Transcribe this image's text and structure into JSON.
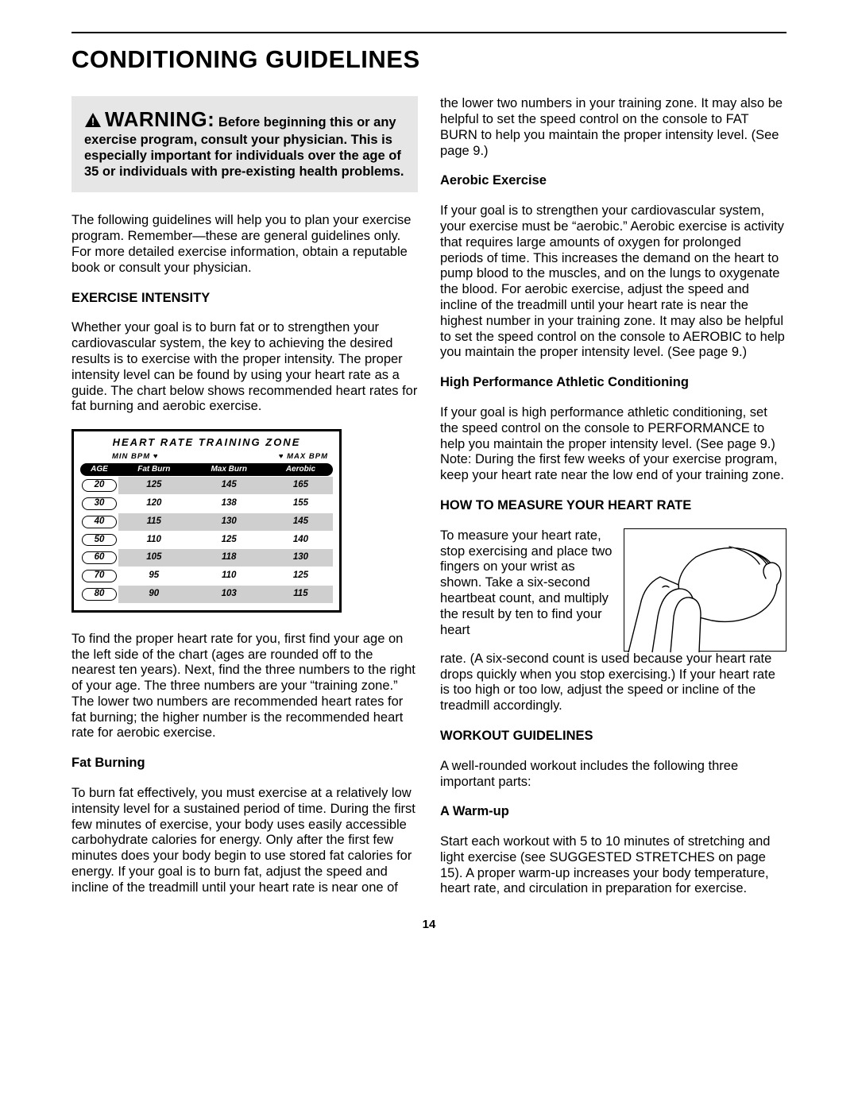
{
  "page_title": "CONDITIONING GUIDELINES",
  "page_number": "14",
  "warning": {
    "lead": "WARNING:",
    "tail": "Before beginning this or any exercise program, consult your physician. This is especially important for individuals over the age of 35 or individuals with pre-existing health problems."
  },
  "intro": "The following guidelines will help you to plan your exercise program. Remember—these are general guidelines only. For more detailed exercise information, obtain a reputable book or consult your physician.",
  "exercise_intensity": {
    "heading": "EXERCISE INTENSITY",
    "p1": "Whether your goal is to burn fat or to strengthen your cardiovascular system, the key to achieving the desired results is to exercise with the proper intensity. The proper intensity level can be found by using your heart rate as a guide. The chart below shows recommended heart rates for fat burning and aerobic exercise.",
    "p2": "To find the proper heart rate for you, first find your age on the left side of the chart (ages are rounded off to the nearest ten years). Next, find the three numbers to the right of your age. The three numbers are your “training zone.” The lower two numbers are recommended heart rates for fat burning; the higher number is the recommended heart rate for aerobic exercise."
  },
  "chart": {
    "title": "HEART RATE TRAINING ZONE",
    "min_label": "MIN BPM",
    "max_label": "MAX BPM",
    "heart": "♥",
    "columns": [
      "AGE",
      "Fat Burn",
      "Max Burn",
      "Aerobic"
    ],
    "rows": [
      {
        "age": "20",
        "fat": "125",
        "max": "145",
        "aer": "165"
      },
      {
        "age": "30",
        "fat": "120",
        "max": "138",
        "aer": "155"
      },
      {
        "age": "40",
        "fat": "115",
        "max": "130",
        "aer": "145"
      },
      {
        "age": "50",
        "fat": "110",
        "max": "125",
        "aer": "140"
      },
      {
        "age": "60",
        "fat": "105",
        "max": "118",
        "aer": "130"
      },
      {
        "age": "70",
        "fat": "95",
        "max": "110",
        "aer": "125"
      },
      {
        "age": "80",
        "fat": "90",
        "max": "103",
        "aer": "115"
      }
    ]
  },
  "fat_burning": {
    "heading": "Fat Burning",
    "p": "To burn fat effectively, you must exercise at a relatively low intensity level for a sustained period of time. During the first few minutes of exercise, your body uses easily accessible carbohydrate calories for energy. Only after the first few minutes does your body begin to use stored fat calories for energy. If your goal is to burn fat, adjust the speed and incline of the treadmill until your heart rate is near one of the lower two numbers in your training zone. It may also be helpful to set the speed control on the console to FAT BURN to help you maintain the proper intensity level. (See page 9.)"
  },
  "aerobic": {
    "heading": "Aerobic Exercise",
    "p": "If your goal is to strengthen your cardiovascular system, your exercise must be “aerobic.” Aerobic exercise is activity that requires large amounts of oxygen for prolonged periods of time. This increases the demand on the heart to pump blood to the muscles, and on the lungs to oxygenate the blood. For aerobic exercise, adjust the speed and incline of the treadmill until your heart rate is near the highest number in your training zone. It may also be helpful to set the speed control on the console to AEROBIC to help you maintain the proper intensity level. (See page 9.)"
  },
  "hiperf": {
    "heading": "High Performance Athletic Conditioning",
    "p": "If your goal is high performance athletic conditioning, set the speed control on the console to PERFORMANCE to help you maintain the proper intensity level. (See page 9.) Note: During the first few weeks of your exercise program, keep your heart rate near the low end of your training zone."
  },
  "measure": {
    "heading": "HOW TO MEASURE YOUR HEART RATE",
    "p1": "To measure your heart rate, stop exercising and place two fingers on your wrist as shown. Take a six-second heartbeat count, and multiply the result by ten to find your heart",
    "p2": "rate. (A six-second count is used because your heart rate drops quickly when you stop exercising.) If your heart rate is too high or too low, adjust the speed or incline of the treadmill accordingly."
  },
  "workout": {
    "heading": "WORKOUT GUIDELINES",
    "p": "A well-rounded workout includes the following three important parts:"
  },
  "warmup": {
    "heading": "A Warm-up",
    "p": "Start each workout with 5 to 10 minutes of stretching and light exercise (see SUGGESTED STRETCHES on page 15). A proper warm-up increases your body temperature, heart rate, and circulation in preparation for exercise."
  },
  "colors": {
    "zebra_dark": "#cfcfcf",
    "warning_bg": "#e6e6e6"
  }
}
